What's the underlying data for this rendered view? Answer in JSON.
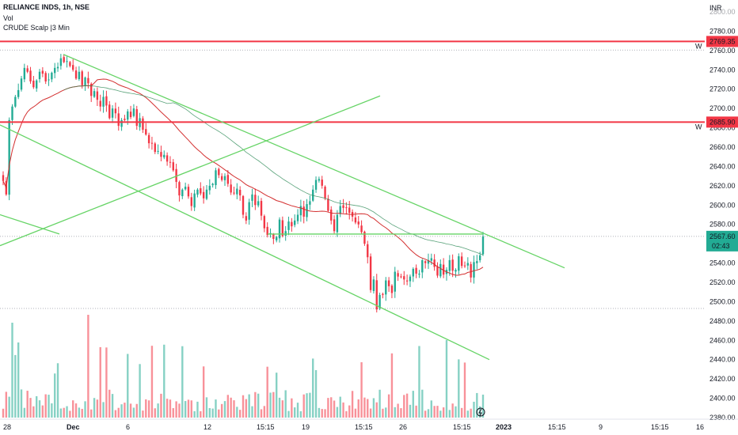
{
  "header": {
    "symbol_line": "RELIANCE INDS, 1h, NSE",
    "vol_label": "Vol",
    "indicator_label": "CRUDE Scalp |3 Min"
  },
  "price_axis": {
    "currency": "INR",
    "top_partial": "2800.00",
    "ticks": [
      "2780.00",
      "2760.00",
      "2740.00",
      "2720.00",
      "2700.00",
      "2680.00",
      "2660.00",
      "2640.00",
      "2620.00",
      "2600.00",
      "2580.00",
      "2560.00",
      "2540.00",
      "2520.00",
      "2500.00",
      "2480.00",
      "2460.00",
      "2440.00",
      "2420.00",
      "2400.00",
      "2380.00"
    ],
    "level_tags": [
      {
        "label": "2769.35",
        "color": "#f23645"
      },
      {
        "label": "2685.90",
        "color": "#f23645"
      }
    ],
    "current_price": {
      "label": "2567.60",
      "countdown": "02:43",
      "color": "#22ab94"
    }
  },
  "time_axis": {
    "labels": [
      "28",
      "Dec",
      "6",
      "12",
      "15:15",
      "19",
      "15:15",
      "26",
      "15:15",
      "2023",
      "15:15",
      "9",
      "15:15",
      "16"
    ]
  },
  "colors": {
    "up": "#22ab94",
    "down": "#f23645",
    "resistance": "#f23645",
    "trendline": "#66d466",
    "ma_red": "#d32f2f",
    "ma_green": "#2e8b57",
    "grid_dotted": "#9598a1"
  },
  "chart_data": {
    "type": "candlestick",
    "symbol": "RELIANCE INDS",
    "interval": "1h",
    "exchange": "NSE",
    "y_range": [
      2380,
      2800
    ],
    "horizontal_levels": [
      2769.35,
      2685.9
    ],
    "dotted_levels": [
      2760.5,
      2567.6,
      2493
    ],
    "last_price": 2567.6,
    "closes": [
      2625,
      2611,
      2688,
      2702,
      2712,
      2719,
      2731,
      2742,
      2738,
      2728,
      2722,
      2729,
      2738,
      2736,
      2728,
      2730,
      2737,
      2742,
      2743,
      2752,
      2748,
      2749,
      2744,
      2740,
      2731,
      2738,
      2724,
      2732,
      2726,
      2713,
      2718,
      2709,
      2702,
      2712,
      2703,
      2690,
      2700,
      2695,
      2682,
      2688,
      2688,
      2697,
      2691,
      2700,
      2682,
      2690,
      2678,
      2673,
      2664,
      2664,
      2655,
      2656,
      2650,
      2652,
      2645,
      2644,
      2636,
      2624,
      2610,
      2616,
      2619,
      2609,
      2599,
      2612,
      2616,
      2612,
      2607,
      2616,
      2620,
      2622,
      2636,
      2631,
      2626,
      2630,
      2622,
      2613,
      2612,
      2617,
      2610,
      2590,
      2584,
      2603,
      2611,
      2600,
      2604,
      2589,
      2576,
      2569,
      2571,
      2565,
      2567,
      2585,
      2568,
      2573,
      2583,
      2578,
      2584,
      2590,
      2599,
      2588,
      2601,
      2604,
      2616,
      2626,
      2627,
      2620,
      2607,
      2594,
      2584,
      2573,
      2590,
      2599,
      2597,
      2597,
      2592,
      2588,
      2582,
      2580,
      2572,
      2560,
      2546,
      2512,
      2523,
      2492,
      2507,
      2507,
      2522,
      2516,
      2509,
      2531,
      2526,
      2526,
      2523,
      2521,
      2526,
      2534,
      2529,
      2529,
      2543,
      2540,
      2543,
      2545,
      2536,
      2527,
      2539,
      2528,
      2533,
      2543,
      2532,
      2533,
      2547,
      2537,
      2537,
      2540,
      2525,
      2541,
      2542,
      2548,
      2567.6
    ]
  }
}
